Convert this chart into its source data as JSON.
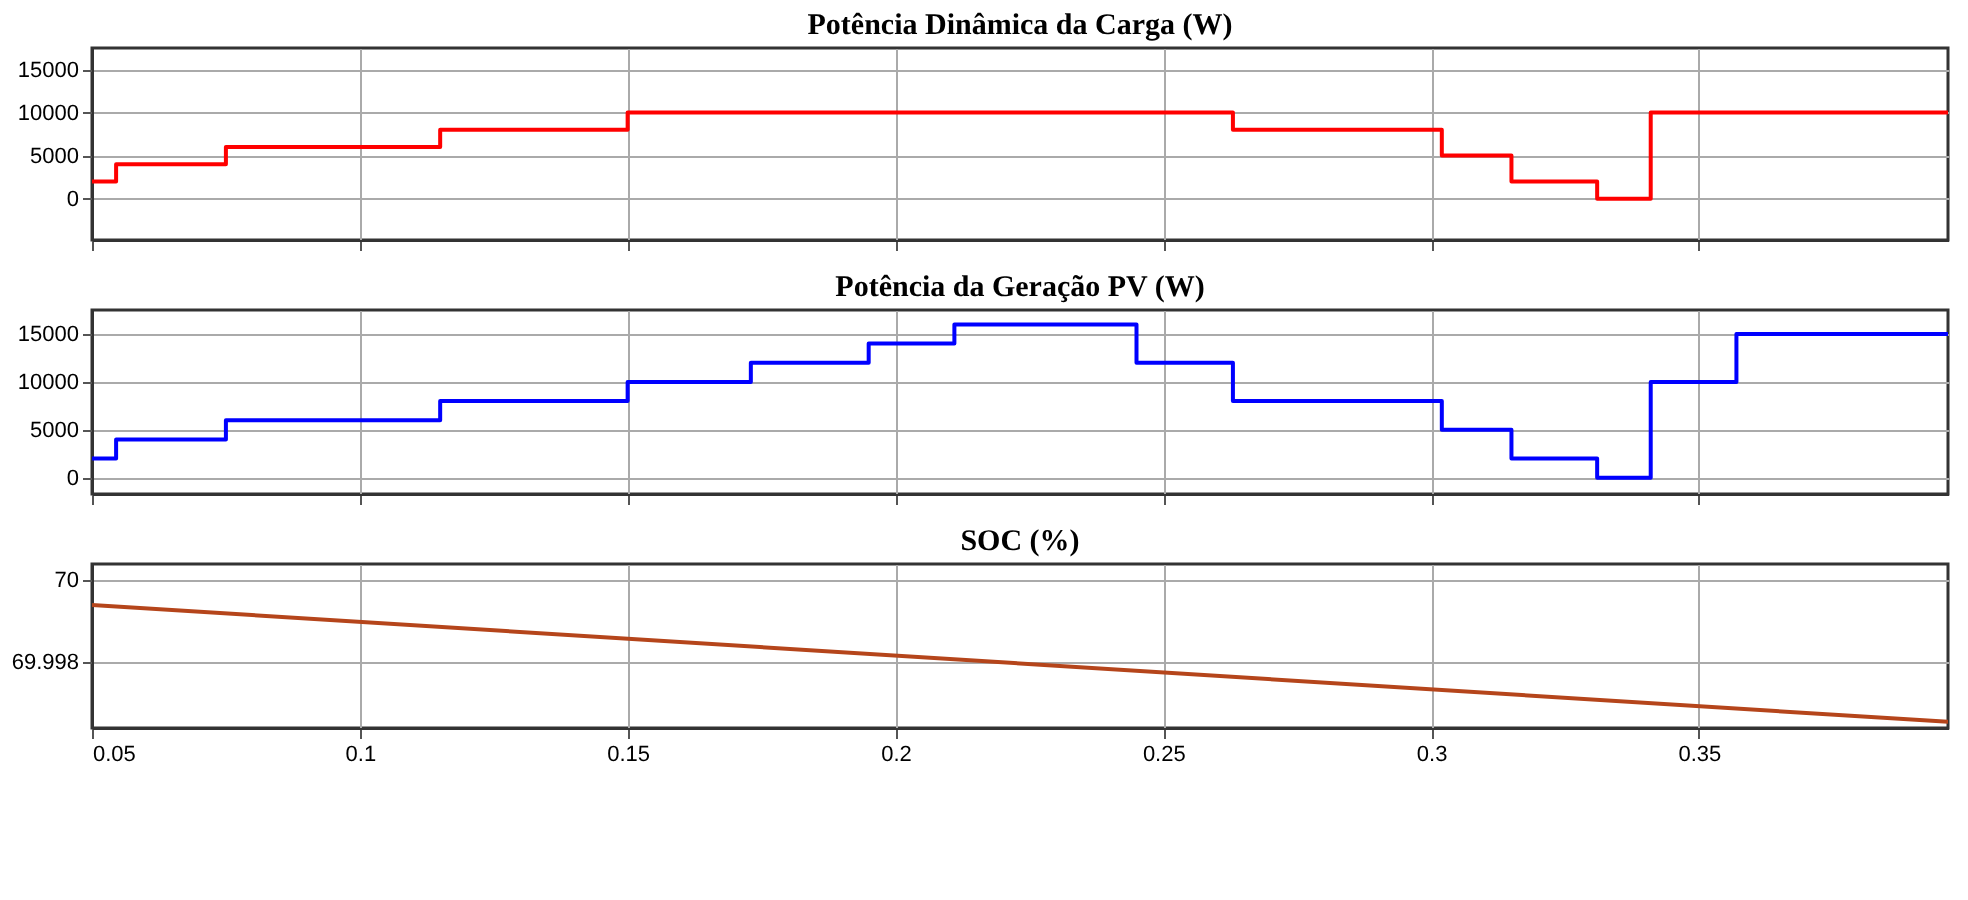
{
  "chart_data": [
    {
      "type": "step",
      "title": "Potência Dinâmica da Carga (W)",
      "x": [
        0.05,
        0.0545,
        0.075,
        0.115,
        0.15,
        0.263,
        0.302,
        0.315,
        0.331,
        0.341,
        0.3965
      ],
      "series": [
        {
          "color": "#ff0000",
          "values": [
            2000,
            4000,
            6000,
            8000,
            10000,
            8000,
            5000,
            2000,
            0,
            10000,
            10000
          ]
        }
      ],
      "xlim": [
        0.05,
        0.3965
      ],
      "xticks": [
        0.05,
        0.1,
        0.15,
        0.2,
        0.25,
        0.3,
        0.35
      ],
      "ylim": [
        -4800,
        17500
      ],
      "yticks": [
        0,
        5000,
        10000,
        15000
      ],
      "grid": true,
      "tick_labels": "y"
    },
    {
      "type": "step",
      "title": "Potência da Geração PV (W)",
      "x": [
        0.05,
        0.0545,
        0.075,
        0.115,
        0.15,
        0.173,
        0.195,
        0.211,
        0.245,
        0.263,
        0.302,
        0.315,
        0.331,
        0.341,
        0.357,
        0.3965
      ],
      "series": [
        {
          "color": "#0000ff",
          "values": [
            2000,
            4000,
            6000,
            8000,
            10000,
            12000,
            14000,
            16000,
            12000,
            8000,
            5000,
            2000,
            0,
            10000,
            15000,
            15000
          ]
        }
      ],
      "xlim": [
        0.05,
        0.3965
      ],
      "xticks": [
        0.05,
        0.1,
        0.15,
        0.2,
        0.25,
        0.3,
        0.35
      ],
      "ylim": [
        -1700,
        17500
      ],
      "yticks": [
        0,
        5000,
        10000,
        15000
      ],
      "grid": true,
      "tick_labels": "y"
    },
    {
      "type": "line",
      "title": "SOC (%)",
      "x": [
        0.05,
        0.3965
      ],
      "series": [
        {
          "color": "#b5451b",
          "values": [
            69.9994,
            69.99655
          ]
        }
      ],
      "xlim": [
        0.05,
        0.3965
      ],
      "xticks": [
        0.05,
        0.1,
        0.15,
        0.2,
        0.25,
        0.3,
        0.35
      ],
      "ylim": [
        69.9964,
        70.0004
      ],
      "yticks": [
        70,
        69.998
      ],
      "grid": true
    }
  ]
}
